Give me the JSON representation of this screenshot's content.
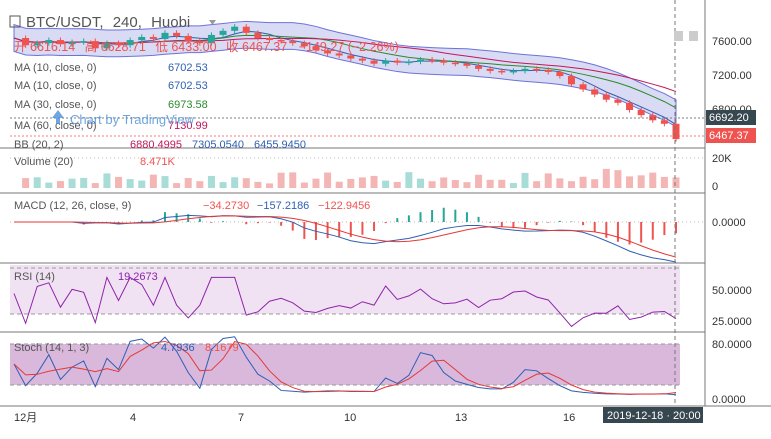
{
  "header": {
    "symbol": "BTC/USDT",
    "interval": "240",
    "exchange": "Huobi",
    "sep1": ",",
    "sep2": ",",
    "ohlc_open_label": "开",
    "ohlc_open": "6616.14",
    "ohlc_high_label": "高",
    "ohlc_high": "6628.71",
    "ohlc_low_label": "低",
    "ohlc_low": "6433.00",
    "ohlc_close_label": "收",
    "ohlc_close": "6467.37",
    "change": "−149.27 (−2.26%)"
  },
  "watermark": "Chart by TradingView",
  "indicators": {
    "ma10": {
      "label": "MA (10, close, 0)",
      "value": "6702.53",
      "color": "#2f5fb3"
    },
    "ma30": {
      "label": "MA (30, close, 0)",
      "value": "6973.58",
      "color": "#2c8a2c"
    },
    "ma60": {
      "label": "MA (60, close, 0)",
      "value": "7130.99",
      "color": "#c2185b"
    },
    "bb": {
      "label": "BB (20, 2)",
      "v1": "6880.4995",
      "v2": "7305.0540",
      "v3": "6455.9450"
    },
    "volume": {
      "label": "Volume (20)",
      "value": "8.471K"
    },
    "macd": {
      "label": "MACD (12, 26, close, 9)",
      "v1": "−34.2730",
      "v2": "−157.2186",
      "v3": "−122.9456"
    },
    "rsi": {
      "label": "RSI (14)",
      "value": "19.2673"
    },
    "stoch": {
      "label": "Stoch (14, 1, 3)",
      "v1": "4.7936",
      "v2": "8.1679"
    }
  },
  "price_axis": {
    "ticks": [
      "7600.00",
      "7200.00",
      "6800.00"
    ],
    "badge_dark": "6692.20",
    "badge_red": "6467.37"
  },
  "volume_axis": {
    "ticks": [
      "20K",
      "0"
    ]
  },
  "macd_axis": {
    "ticks": [
      "0.0000"
    ]
  },
  "rsi_axis": {
    "ticks": [
      "50.0000",
      "25.0000"
    ]
  },
  "stoch_axis": {
    "ticks": [
      "80.0000",
      "0.0000"
    ]
  },
  "time_axis": {
    "labels": [
      "12月",
      "4",
      "7",
      "10",
      "13",
      "16"
    ],
    "crosshair_label": "2019-12-18 · 20:00"
  },
  "colors": {
    "up": "#26a69a",
    "down": "#ef5350",
    "bb_fill": "#c9cbf0",
    "rsi_fill": "#f0e2f2",
    "stoch_fill": "#d9b8dc"
  },
  "chart_data": {
    "type": "candlestick",
    "symbol": "BTC/USDT",
    "interval": "240",
    "price_range": [
      6400,
      7800
    ],
    "price_series_approx": [
      7450,
      7380,
      7400,
      7430,
      7390,
      7410,
      7420,
      7350,
      7400,
      7380,
      7430,
      7460,
      7440,
      7500,
      7470,
      7420,
      7400,
      7480,
      7520,
      7560,
      7500,
      7450,
      7430,
      7420,
      7400,
      7370,
      7330,
      7300,
      7280,
      7250,
      7230,
      7200,
      7230,
      7210,
      7220,
      7240,
      7230,
      7210,
      7200,
      7180,
      7150,
      7130,
      7120,
      7130,
      7150,
      7140,
      7120,
      7080,
      7000,
      6950,
      6900,
      6850,
      6820,
      6750,
      6700,
      6650,
      6616,
      6467
    ],
    "rsi_last": 19.2673,
    "rsi_range": [
      0,
      100
    ],
    "stoch_range": [
      0,
      100
    ],
    "stoch_last": [
      4.7936,
      8.1679
    ]
  }
}
